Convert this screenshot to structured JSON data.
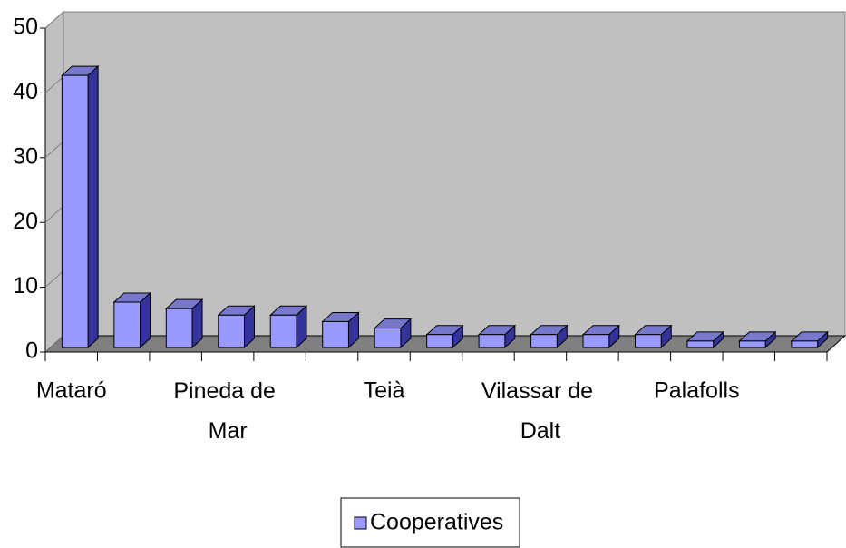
{
  "chart_data": {
    "type": "bar3d",
    "categories": [
      "Mataró",
      null,
      null,
      "Pineda de Mar",
      null,
      null,
      "Teià",
      null,
      null,
      "Vilassar de Dalt",
      null,
      null,
      "Palafolls",
      null,
      null
    ],
    "series": [
      {
        "name": "Cooperatives",
        "color": "#9999ff",
        "values": [
          42,
          7,
          6,
          5,
          5,
          4,
          3,
          2,
          2,
          2,
          2,
          2,
          1,
          1,
          1
        ]
      }
    ],
    "ylim": [
      0,
      50
    ],
    "yticks": [
      0,
      10,
      20,
      30,
      40,
      50
    ],
    "wall_color": "#c0c0c0",
    "floor_color": "#808080",
    "legend": "bottom"
  }
}
